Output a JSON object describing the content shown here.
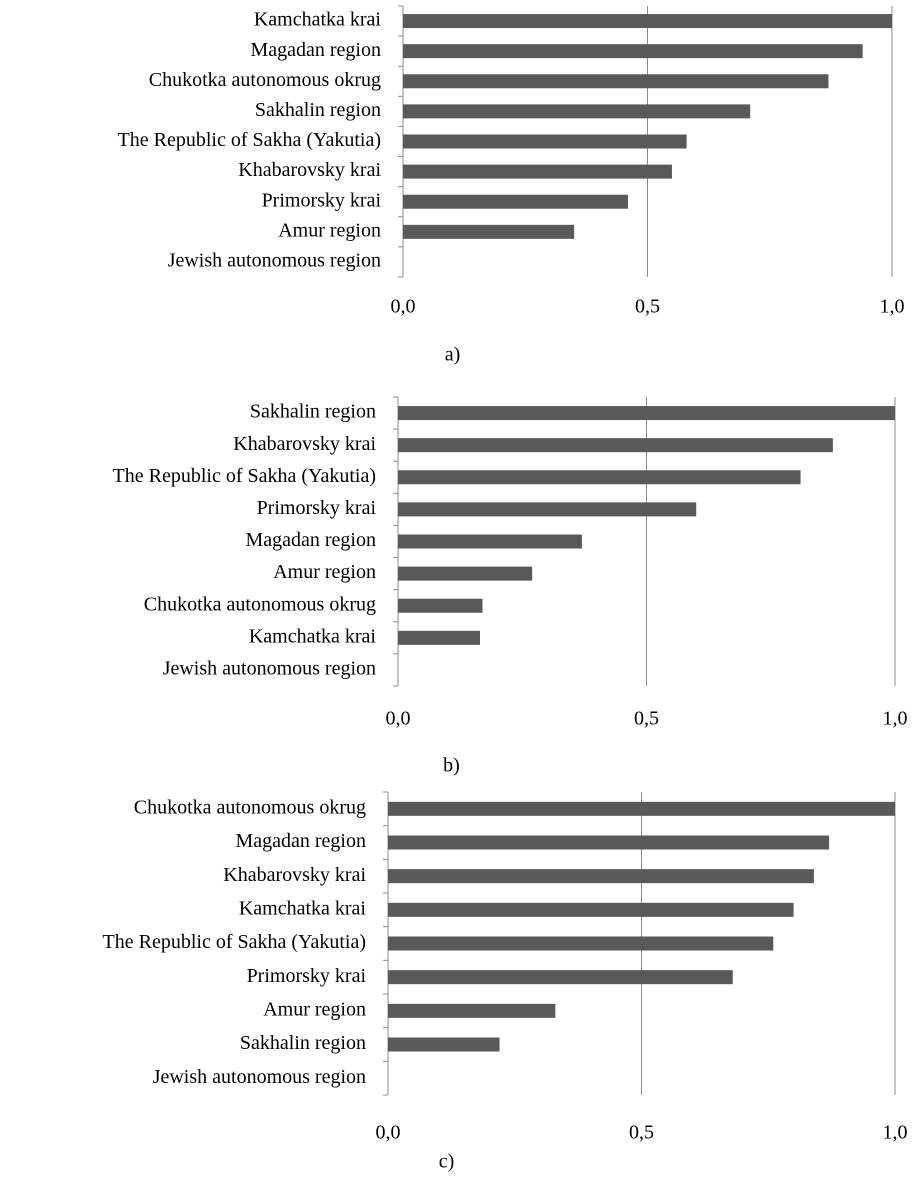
{
  "chart_data": [
    {
      "type": "bar",
      "categories": [
        "Kamchatka krai",
        "Magadan region",
        "Chukotka autonomous okrug",
        "Sakhalin region",
        "The Republic of Sakha (Yakutia)",
        "Khabarovsky krai",
        "Primorsky krai",
        "Amur region",
        "Jewish autonomous region"
      ],
      "values": [
        1.0,
        0.94,
        0.87,
        0.71,
        0.58,
        0.55,
        0.46,
        0.35,
        0
      ],
      "color": "#595959",
      "xlim": [
        0,
        1
      ],
      "xticks": [
        {
          "value": 0,
          "label": "0,0"
        },
        {
          "value": 0.5,
          "label": "0,5"
        },
        {
          "value": 1,
          "label": "1,0"
        }
      ],
      "grid": true,
      "caption": "a)"
    },
    {
      "type": "bar",
      "categories": [
        "Sakhalin region",
        "Khabarovsky krai",
        "The Republic of Sakha (Yakutia)",
        "Primorsky krai",
        "Magadan region",
        "Amur region",
        "Chukotka autonomous okrug",
        "Kamchatka krai",
        "Jewish autonomous region"
      ],
      "values": [
        1.0,
        0.875,
        0.81,
        0.6,
        0.37,
        0.27,
        0.17,
        0.165,
        0
      ],
      "color": "#595959",
      "xlim": [
        0,
        1
      ],
      "xticks": [
        {
          "value": 0,
          "label": "0,0"
        },
        {
          "value": 0.5,
          "label": "0,5"
        },
        {
          "value": 1,
          "label": "1,0"
        }
      ],
      "grid": true,
      "caption": "b)"
    },
    {
      "type": "bar",
      "categories": [
        "Chukotka autonomous okrug",
        "Magadan region",
        "Khabarovsky krai",
        "Kamchatka krai",
        "The Republic of Sakha (Yakutia)",
        "Primorsky krai",
        "Amur region",
        "Sakhalin region",
        "Jewish autonomous region"
      ],
      "values": [
        1.0,
        0.87,
        0.84,
        0.8,
        0.76,
        0.68,
        0.33,
        0.22,
        0
      ],
      "color": "#595959",
      "xlim": [
        0,
        1
      ],
      "xticks": [
        {
          "value": 0,
          "label": "0,0"
        },
        {
          "value": 0.5,
          "label": "0,5"
        },
        {
          "value": 1,
          "label": "1,0"
        }
      ],
      "grid": true,
      "caption": "c)"
    }
  ]
}
